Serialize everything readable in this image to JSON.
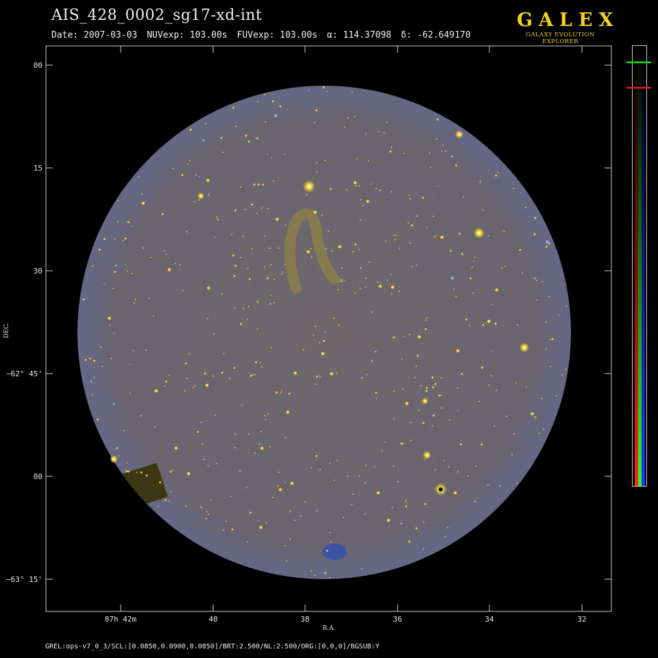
{
  "header": {
    "title": "AIS_428_0002_sg17-xd-int",
    "date": "Date: 2007-03-03",
    "nuv_exp": "NUVexp: 103.00s",
    "fuv_exp": "FUVexp: 103.00s",
    "alpha": "α: 114.37098",
    "delta": "δ: -62.649170"
  },
  "logo": {
    "name": "GALEX",
    "subtitle": "GALAXY EVOLUTION EXPLORER"
  },
  "axes": {
    "x_label": "R.A.",
    "y_label": "DEC.",
    "x_ticks": [
      "07h 42m",
      "40",
      "38",
      "36",
      "34",
      "32"
    ],
    "y_ticks": [
      "00",
      "15",
      "30",
      "−62° 45'",
      "00",
      "−63° 15'"
    ]
  },
  "colorbar": {
    "channels": [
      "red",
      "green",
      "blue"
    ],
    "marker_colors": [
      "#22dd22",
      "#dd2222"
    ]
  },
  "colors": {
    "sky_background": "#2a2810",
    "star": "#ffdd33",
    "noise_blue": "#3a5fd0",
    "frame": "#cfcfcf"
  },
  "footer": {
    "text": "GREL:ops-v7_0_3/SCL:[0.0850,0.0900,0.0850]/BRT:2.500/NL:2.500/ORG:[0,0,0]/BGSUB:Y"
  }
}
